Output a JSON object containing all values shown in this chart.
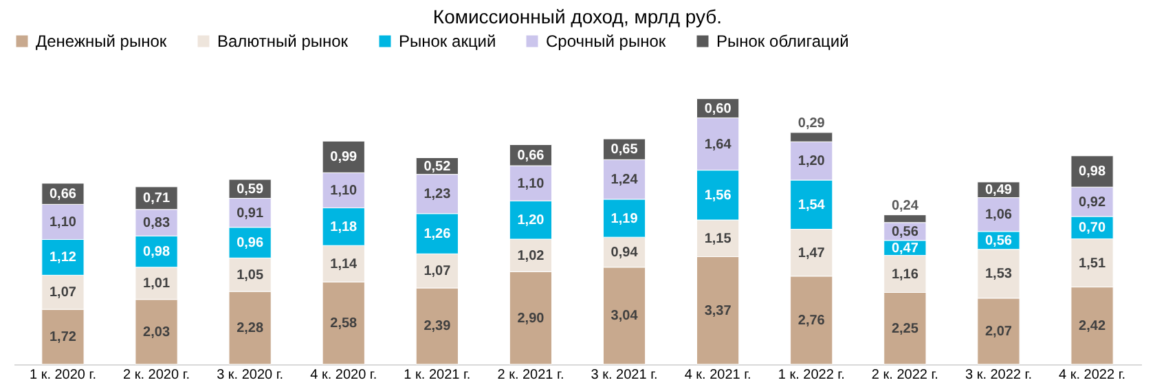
{
  "chart_data": {
    "type": "bar",
    "title": "Комиссионный доход, мрлд руб.",
    "categories": [
      "1 к. 2020 г.",
      "2 к. 2020 г.",
      "3 к. 2020 г.",
      "4 к. 2020 г.",
      "1 к. 2021 г.",
      "2 к. 2021 г.",
      "3 к. 2021 г.",
      "4 к. 2021 г.",
      "1 к. 2022 г.",
      "2 к. 2022 г.",
      "3 к. 2022 г.",
      "4 к. 2022 г."
    ],
    "stacked": true,
    "legend": "top",
    "grid": false,
    "series": [
      {
        "name": "Денежный рынок",
        "color": "#c8a98e",
        "values": [
          1.72,
          2.03,
          2.28,
          2.58,
          2.39,
          2.9,
          3.04,
          3.37,
          2.76,
          2.25,
          2.07,
          2.42
        ],
        "value_labels": [
          "1,72",
          "2,03",
          "2,28",
          "2,58",
          "2,39",
          "2,90",
          "3,04",
          "3,37",
          "2,76",
          "2,25",
          "2,07",
          "2,42"
        ]
      },
      {
        "name": "Валютный рынок",
        "color": "#eee5dc",
        "values": [
          1.07,
          1.01,
          1.05,
          1.14,
          1.07,
          1.02,
          0.94,
          1.15,
          1.47,
          1.16,
          1.53,
          1.51
        ],
        "value_labels": [
          "1,07",
          "1,01",
          "1,05",
          "1,14",
          "1,07",
          "1,02",
          "0,94",
          "1,15",
          "1,47",
          "1,16",
          "1,53",
          "1,51"
        ]
      },
      {
        "name": "Рынок акций",
        "color": "#00b6e2",
        "values": [
          1.12,
          0.98,
          0.96,
          1.18,
          1.26,
          1.2,
          1.19,
          1.56,
          1.54,
          0.47,
          0.56,
          0.7
        ],
        "value_labels": [
          "1,12",
          "0,98",
          "0,96",
          "1,18",
          "1,26",
          "1,20",
          "1,19",
          "1,56",
          "1,54",
          "0,47",
          "0,56",
          "0,70"
        ]
      },
      {
        "name": "Срочный рынок",
        "color": "#cbc5ec",
        "values": [
          1.1,
          0.83,
          0.91,
          1.1,
          1.23,
          1.1,
          1.24,
          1.64,
          1.2,
          0.56,
          1.06,
          0.92
        ],
        "value_labels": [
          "1,10",
          "0,83",
          "0,91",
          "1,10",
          "1,23",
          "1,10",
          "1,24",
          "1,64",
          "1,20",
          "0,56",
          "1,06",
          "0,92"
        ]
      },
      {
        "name": "Рынок облигаций",
        "color": "#595959",
        "values": [
          0.66,
          0.71,
          0.59,
          0.99,
          0.52,
          0.66,
          0.65,
          0.6,
          0.29,
          0.24,
          0.49,
          0.98
        ],
        "value_labels": [
          "0,66",
          "0,71",
          "0,59",
          "0,99",
          "0,52",
          "0,66",
          "0,65",
          "0,60",
          "0,29",
          "0,24",
          "0,49",
          "0,98"
        ]
      }
    ]
  }
}
